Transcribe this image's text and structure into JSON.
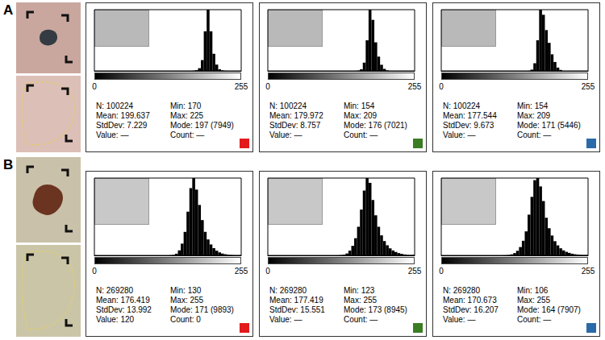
{
  "panel_labels": [
    "A",
    "B"
  ],
  "chart_data": [
    {
      "type": "histogram",
      "color": "#e31a1c",
      "tick_labels": "x",
      "grid": false,
      "xlim": [
        0,
        255
      ],
      "xticks": [
        0,
        255
      ],
      "ylim": [
        0,
        34000
      ],
      "bins": [
        170,
        175,
        180,
        185,
        190,
        195,
        200,
        205,
        210,
        215,
        220,
        225,
        230
      ],
      "series": [
        {
          "color": "#000000",
          "values": [
            100,
            400,
            1500,
            6000,
            22000,
            34000,
            22000,
            9500,
            3500,
            900,
            280,
            44
          ]
        }
      ],
      "annotations": [
        "N: 100224",
        "Mean: 199.637",
        "StdDev: 7.229",
        "Value: —",
        "Min: 170",
        "Max: 225",
        "Mode: 197 (7949)",
        "Count: —"
      ]
    },
    {
      "type": "histogram",
      "color": "#3a7d22",
      "tick_labels": "x",
      "grid": false,
      "xlim": [
        0,
        255
      ],
      "xticks": [
        0,
        255
      ],
      "ylim": [
        0,
        30000
      ],
      "bins": [
        150,
        155,
        160,
        165,
        170,
        175,
        180,
        185,
        190,
        195,
        200,
        205,
        210
      ],
      "series": [
        {
          "color": "#000000",
          "values": [
            20,
            150,
            800,
            4000,
            15000,
            30000,
            25000,
            14000,
            7000,
            3000,
            1000,
            254
          ]
        }
      ],
      "annotations": [
        "N: 100224",
        "Mean: 179.972",
        "StdDev: 8.757",
        "Value: —",
        "Min: 154",
        "Max: 209",
        "Mode: 176 (7021)",
        "Count: —"
      ]
    },
    {
      "type": "histogram",
      "color": "#2a6aa8",
      "tick_labels": "x",
      "grid": false,
      "xlim": [
        0,
        255
      ],
      "xticks": [
        0,
        255
      ],
      "ylim": [
        0,
        24000
      ],
      "bins": [
        150,
        155,
        160,
        165,
        170,
        175,
        180,
        185,
        190,
        195,
        200,
        205,
        210
      ],
      "series": [
        {
          "color": "#000000",
          "values": [
            50,
            500,
            3000,
            12000,
            24000,
            22000,
            16000,
            11000,
            6500,
            3500,
            1300,
            374
          ]
        }
      ],
      "annotations": [
        "N: 100224",
        "Mean: 177.544",
        "StdDev: 9.673",
        "Value: —",
        "Min: 154",
        "Max: 209",
        "Mode: 171 (5446)",
        "Count: —"
      ]
    },
    {
      "type": "histogram",
      "color": "#e31a1c",
      "tick_labels": "x",
      "grid": false,
      "xlim": [
        0,
        255
      ],
      "xticks": [
        0,
        255
      ],
      "ylim": [
        0,
        46000
      ],
      "bins": [
        130,
        135,
        140,
        145,
        150,
        155,
        160,
        165,
        170,
        175,
        180,
        185,
        190,
        195,
        200,
        205,
        210,
        215,
        220,
        225,
        230,
        235,
        240,
        245,
        250,
        255
      ],
      "series": [
        {
          "color": "#000000",
          "values": [
            100,
            300,
            1000,
            3000,
            7000,
            14000,
            26000,
            40000,
            46000,
            39140,
            30000,
            21000,
            14000,
            9500,
            6500,
            4300,
            2800,
            1800,
            1100,
            700,
            400,
            250,
            150,
            100,
            140
          ]
        }
      ],
      "annotations": [
        "N: 269280",
        "Mean: 176.419",
        "StdDev: 13.992",
        "Value: 120",
        "Min: 130",
        "Max: 255",
        "Mode: 171 (9893)",
        "Count: 0"
      ]
    },
    {
      "type": "histogram",
      "color": "#3a7d22",
      "tick_labels": "x",
      "grid": false,
      "xlim": [
        0,
        255
      ],
      "xticks": [
        0,
        255
      ],
      "ylim": [
        0,
        40500
      ],
      "bins": [
        120,
        125,
        130,
        135,
        140,
        145,
        150,
        155,
        160,
        165,
        170,
        175,
        180,
        185,
        190,
        195,
        200,
        205,
        210,
        215,
        220,
        225,
        230,
        235,
        240,
        245,
        250,
        255
      ],
      "series": [
        {
          "color": "#000000",
          "values": [
            40,
            150,
            400,
            1000,
            2500,
            5000,
            9000,
            15000,
            24000,
            34000,
            40500,
            38000,
            29000,
            21000,
            15000,
            10500,
            7500,
            5300,
            3700,
            2600,
            1800,
            1200,
            800,
            500,
            300,
            200,
            290
          ]
        }
      ],
      "annotations": [
        "N: 269280",
        "Mean: 177.419",
        "StdDev: 15.551",
        "Value: —",
        "Min: 123",
        "Max: 255",
        "Mode: 173 (8945)",
        "Count: —"
      ]
    },
    {
      "type": "histogram",
      "color": "#2a6aa8",
      "tick_labels": "x",
      "grid": false,
      "xlim": [
        0,
        255
      ],
      "xticks": [
        0,
        255
      ],
      "ylim": [
        0,
        37000
      ],
      "bins": [
        105,
        110,
        115,
        120,
        125,
        130,
        135,
        140,
        145,
        150,
        155,
        160,
        165,
        170,
        175,
        180,
        185,
        190,
        195,
        200,
        205,
        210,
        215,
        220,
        225,
        230,
        235,
        240,
        245,
        250,
        255
      ],
      "series": [
        {
          "color": "#000000",
          "values": [
            30,
            80,
            200,
            500,
            1100,
            2200,
            4000,
            7000,
            11500,
            19500,
            28000,
            36000,
            37000,
            33000,
            26000,
            18000,
            13000,
            9500,
            6800,
            4800,
            3400,
            2400,
            1700,
            1200,
            800,
            550,
            380,
            260,
            180,
            200
          ]
        }
      ],
      "annotations": [
        "N: 269280",
        "Mean: 170.673",
        "StdDev: 16.207",
        "Value: —",
        "Min: 106",
        "Max: 255",
        "Mode: 164 (7907)",
        "Count: —"
      ]
    }
  ]
}
